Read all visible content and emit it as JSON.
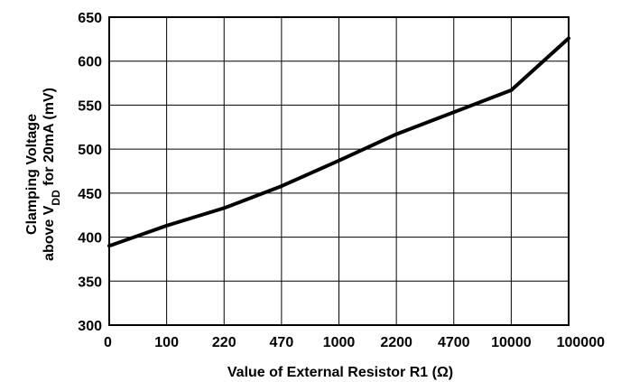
{
  "chart_data": {
    "type": "line",
    "categories": [
      "0",
      "100",
      "220",
      "470",
      "1000",
      "2200",
      "4700",
      "10000",
      "100000"
    ],
    "values": [
      390,
      413,
      433,
      458,
      487,
      517,
      542,
      567,
      626
    ],
    "xlabel": "Value of External Resistor R1 (Ω)",
    "ylabel": {
      "line1": "Clamping Voltage",
      "line2_prefix": "above V",
      "line2_sub": "DD",
      "line2_suffix": " for 20mA (mV)"
    },
    "ylim": [
      300,
      650
    ],
    "yticks": [
      "300",
      "350",
      "400",
      "450",
      "500",
      "550",
      "600",
      "650"
    ],
    "grid": true,
    "colors": {
      "line": "#000000",
      "grid": "#000000",
      "background": "#ffffff"
    }
  }
}
